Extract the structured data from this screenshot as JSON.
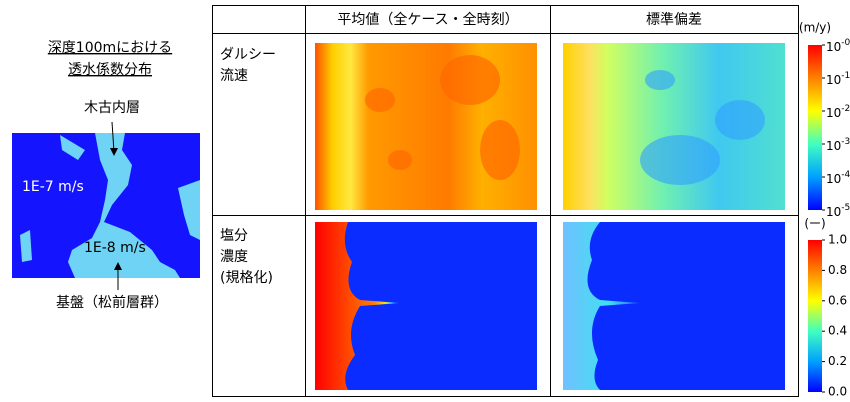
{
  "left_panel": {
    "title_lines": [
      "深度100mにおける",
      "透水係数分布"
    ],
    "top_label": "木古内層",
    "zone_labels": [
      "1E-7 m/s",
      "1E-8 m/s"
    ],
    "bottom_label": "基盤（松前層群）"
  },
  "table": {
    "header": [
      "平均値（全ケース・全時刻）",
      "標準偏差"
    ],
    "rows": [
      {
        "label_lines": [
          "ダルシー",
          "流速"
        ]
      },
      {
        "label_lines": [
          "塩分",
          "濃度",
          "(規格化)"
        ]
      }
    ]
  },
  "colorbars": [
    {
      "unit": "(m/y)",
      "ticks": [
        {
          "base": "10",
          "exponent": "-0"
        },
        {
          "base": "10",
          "exponent": "-1"
        },
        {
          "base": "10",
          "exponent": "-2"
        },
        {
          "base": "10",
          "exponent": "-3"
        },
        {
          "base": "10",
          "exponent": "-4"
        },
        {
          "base": "10",
          "exponent": "-5"
        }
      ]
    },
    {
      "unit": "(ー)",
      "ticks": [
        "1.0",
        "0.8",
        "0.6",
        "0.4",
        "0.2",
        "0.0"
      ]
    }
  ]
}
